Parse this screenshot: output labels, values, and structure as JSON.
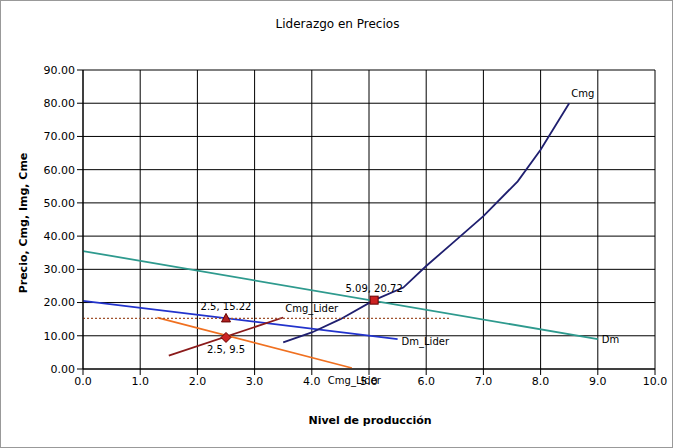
{
  "chart_data": {
    "type": "line",
    "title": "Liderazgo en Precios",
    "x_label": "Nivel de producción",
    "y_label": "Precio, Cmg, Img, Cme",
    "xlim": [
      0,
      10
    ],
    "ylim": [
      0,
      90
    ],
    "xticks": [
      {
        "value": 0,
        "label": "0.0"
      },
      {
        "value": 1,
        "label": "1.0"
      },
      {
        "value": 2,
        "label": "2.0"
      },
      {
        "value": 3,
        "label": "3.0"
      },
      {
        "value": 4,
        "label": "4.0"
      },
      {
        "value": 5,
        "label": "5.0"
      },
      {
        "value": 6,
        "label": "6.0"
      },
      {
        "value": 7,
        "label": "7.0"
      },
      {
        "value": 8,
        "label": "8.0"
      },
      {
        "value": 9,
        "label": "9.0"
      },
      {
        "value": 10,
        "label": "10.0"
      }
    ],
    "yticks": [
      {
        "value": 0,
        "label": "0.00"
      },
      {
        "value": 10,
        "label": "10.00"
      },
      {
        "value": 20,
        "label": "20.00"
      },
      {
        "value": 30,
        "label": "30.00"
      },
      {
        "value": 40,
        "label": "40.00"
      },
      {
        "value": 50,
        "label": "50.00"
      },
      {
        "value": 60,
        "label": "60.00"
      },
      {
        "value": 70,
        "label": "70.00"
      },
      {
        "value": 80,
        "label": "80.00"
      },
      {
        "value": 90,
        "label": "90.00"
      }
    ],
    "grid": true,
    "series": [
      {
        "name": "Dm",
        "color": "#2e9a8e",
        "x": [
          0,
          9
        ],
        "values": [
          35.5,
          9
        ]
      },
      {
        "name": "Dm_Lider",
        "color": "#2233cc",
        "x": [
          0,
          5.5
        ],
        "values": [
          20.5,
          9
        ]
      },
      {
        "name": "Cmg",
        "color": "#1f1f6f",
        "x": [
          3.5,
          4.0,
          4.5,
          5.09,
          5.6,
          6.0,
          6.5,
          7.0,
          7.6,
          8.0,
          8.5
        ],
        "values": [
          8,
          11,
          15,
          20.72,
          24.5,
          31,
          38.5,
          46,
          56.5,
          66,
          80
        ]
      },
      {
        "name": "Cmg_Lider",
        "color": "#8b1a1a",
        "x": [
          1.5,
          3.5
        ],
        "values": [
          4,
          15.5
        ]
      },
      {
        "name": "Cmg_Lider",
        "color": "#f07020",
        "x": [
          1.3,
          4.7
        ],
        "values": [
          15.5,
          0.3
        ]
      },
      {
        "color": "#a0522d",
        "line_style": "dotted",
        "x": [
          0,
          6.4
        ],
        "values": [
          15.22,
          15.22
        ]
      }
    ],
    "points": [
      {
        "x": 5.09,
        "y": 20.72,
        "label": "5.09, 20.72",
        "marker": "square",
        "color": "#cc2222"
      },
      {
        "x": 2.5,
        "y": 15.22,
        "label": "2.5, 15.22",
        "marker": "triangle",
        "color": "#b22222"
      },
      {
        "x": 2.5,
        "y": 9.5,
        "label": "2.5, 9.5",
        "marker": "diamond",
        "color": "#cc2222"
      }
    ]
  }
}
